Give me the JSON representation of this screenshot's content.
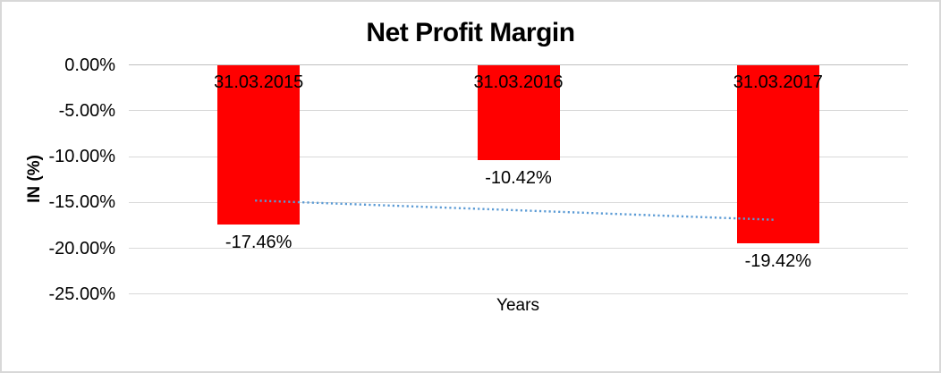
{
  "chart_data": {
    "type": "bar",
    "title": "Net Profit Margin",
    "xlabel": "Years",
    "ylabel": "IN (%)",
    "categories": [
      "31.03.2015",
      "31.03.2016",
      "31.03.2017"
    ],
    "values": [
      -17.46,
      -10.42,
      -19.42
    ],
    "value_labels": [
      "-17.46%",
      "-10.42%",
      "-19.42%"
    ],
    "ylim": [
      -25,
      0
    ],
    "yticks": [
      {
        "value": 0,
        "label": "0.00%"
      },
      {
        "value": -5,
        "label": "-5.00%"
      },
      {
        "value": -10,
        "label": "-10.00%"
      },
      {
        "value": -15,
        "label": "-15.00%"
      },
      {
        "value": -20,
        "label": "-20.00%"
      },
      {
        "value": -25,
        "label": "-25.00%"
      }
    ],
    "grid": true,
    "legend": "none",
    "trendline": {
      "style": "dotted",
      "start_value": -14.8,
      "end_value": -16.9
    },
    "colors": {
      "bar": "#FF0000",
      "gridline": "#D9D9D9",
      "axis_line": "#BFBFBF",
      "trendline": "#5B9BD5",
      "text": "#000000",
      "border": "#D8D8D8"
    }
  }
}
